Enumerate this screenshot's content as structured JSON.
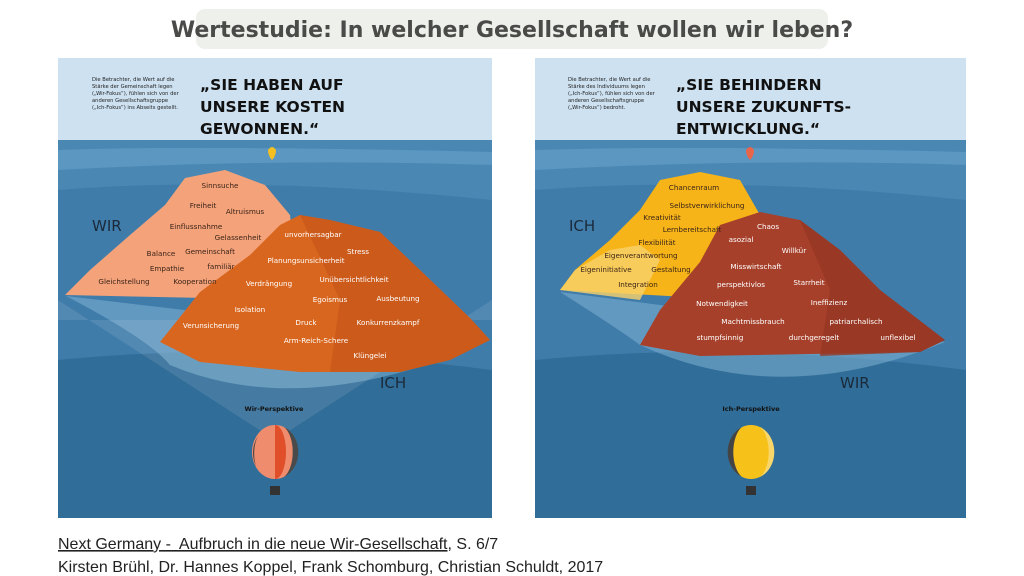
{
  "header": {
    "title": "Wertestudie: In welcher Gesellschaft wollen wir leben?"
  },
  "panels": [
    {
      "intro": [
        "Die Betrachter, die Wert auf die",
        "Stärke der Gemeinschaft legen",
        "(„Wir-Fokus“), fühlen sich von der",
        "anderen Gesellschaftsgruppe",
        "(„Ich-Fokus“) ins Abseits gestellt."
      ],
      "headline": [
        "„SIE HABEN AUF",
        "UNSERE KOSTEN",
        "GEWONNEN.“"
      ],
      "upper_label": "WIR",
      "lower_label": "ICH",
      "upper_words": [
        "Sinnsuche",
        "Freiheit",
        "Altruismus",
        "Einflussnahme",
        "Gelassenheit",
        "Gemeinschaft",
        "Balance",
        "familiär",
        "Empathie",
        "Gleichstellung",
        "Kooperation"
      ],
      "lower_words": [
        "unvorhersagbar",
        "Stress",
        "Planungsunsicherheit",
        "Unübersichtlichkeit",
        "Verdrängung",
        "Egoismus",
        "Ausbeutung",
        "Isolation",
        "Verunsicherung",
        "Druck",
        "Konkurrenzkampf",
        "Arm-Reich-Schere",
        "Klüngelei"
      ],
      "perspective": "Wir-Perspektive"
    },
    {
      "intro": [
        "Die Betrachter, die Wert auf die",
        "Stärke des Individuums legen",
        "(„Ich-Fokus“), fühlen sich von der",
        "anderen Gesellschaftsgruppe",
        "(„Wir-Fokus“) bedroht."
      ],
      "headline": [
        "„SIE BEHINDERN",
        "UNSERE ZUKUNFTS-",
        "ENTWICKLUNG.“"
      ],
      "upper_label": "ICH",
      "lower_label": "WIR",
      "upper_words": [
        "Chancenraum",
        "Selbstverwirklichung",
        "Kreativität",
        "Lernbereitschaft",
        "Flexibilität",
        "Eigenverantwortung",
        "Eigeninitiative",
        "Gestaltung",
        "Integration"
      ],
      "lower_words": [
        "Chaos",
        "asozial",
        "Willkür",
        "Misswirtschaft",
        "Starrheit",
        "perspektivlos",
        "Notwendigkeit",
        "Ineffizienz",
        "Machtmissbrauch",
        "patriarchalisch",
        "stumpfsinnig",
        "durchgeregelt",
        "unflexibel"
      ],
      "perspective": "Ich-Perspektive"
    }
  ],
  "citation": {
    "link_text": "Next Germany -  Aufbruch in die neue Wir-Gesellschaft",
    "rest": ", S. 6/7",
    "authors": "Kirsten Brühl, Dr. Hannes Koppel, Frank Schomburg, Christian Schuldt, 2017"
  }
}
